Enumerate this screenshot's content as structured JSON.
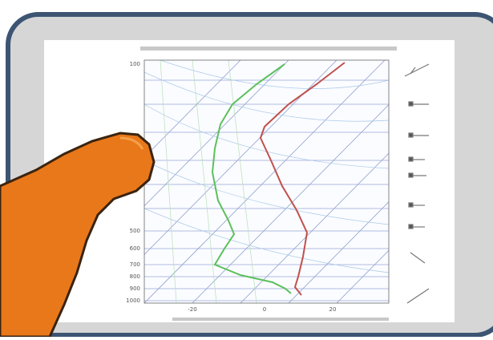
{
  "diagram": {
    "pressure_labels": [
      "100",
      "500",
      "600",
      "700",
      "800",
      "900",
      "1000"
    ],
    "temperature_labels": [
      "-20",
      "0",
      "20"
    ]
  }
}
